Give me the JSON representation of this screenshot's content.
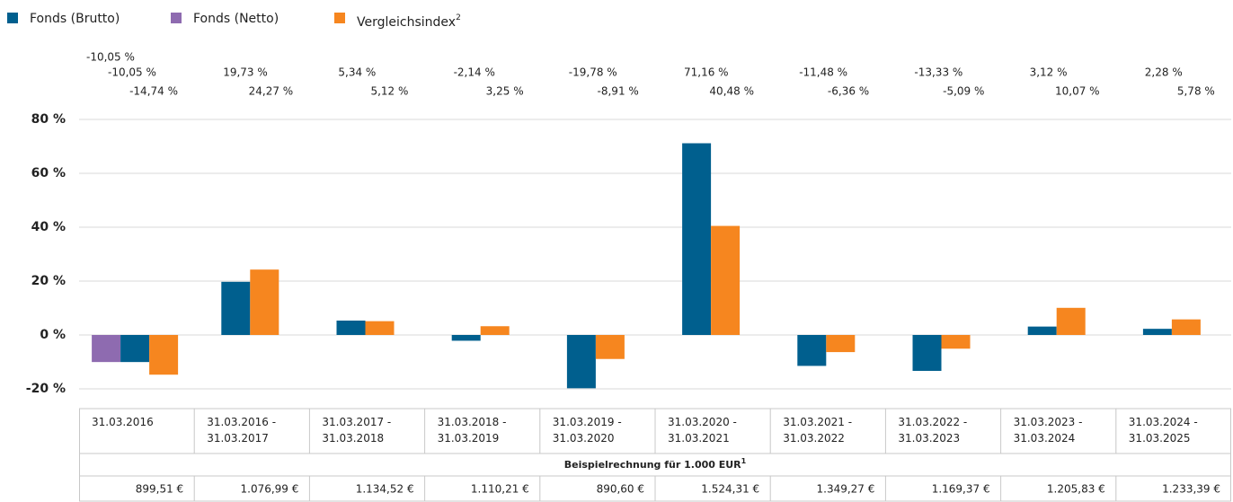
{
  "chart_data": {
    "type": "bar",
    "categories": [
      "31.03.2016",
      "31.03.2016 -\n31.03.2017",
      "31.03.2017 -\n31.03.2018",
      "31.03.2018 -\n31.03.2019",
      "31.03.2019 -\n31.03.2020",
      "31.03.2020 -\n31.03.2021",
      "31.03.2021 -\n31.03.2022",
      "31.03.2022 -\n31.03.2023",
      "31.03.2023 -\n31.03.2024",
      "31.03.2024 -\n31.03.2025"
    ],
    "series": [
      {
        "name": "Fonds (Netto)",
        "color": "#8e6bb0",
        "values": [
          -10.05,
          null,
          null,
          null,
          null,
          null,
          null,
          null,
          null,
          null
        ],
        "value_labels": [
          "-10,05 %",
          null,
          null,
          null,
          null,
          null,
          null,
          null,
          null,
          null
        ]
      },
      {
        "name": "Fonds (Brutto)",
        "color": "#005f8e",
        "values": [
          -10.05,
          19.73,
          5.34,
          -2.14,
          -19.78,
          71.16,
          -11.48,
          -13.33,
          3.12,
          2.28
        ],
        "value_labels": [
          "-10,05 %",
          "19,73 %",
          "5,34 %",
          "-2,14 %",
          "-19,78 %",
          "71,16 %",
          "-11,48 %",
          "-13,33 %",
          "3,12 %",
          "2,28 %"
        ]
      },
      {
        "name": "Vergleichsindex",
        "name_sup": "2",
        "color": "#f6861f",
        "values": [
          -14.74,
          24.27,
          5.12,
          3.25,
          -8.91,
          40.48,
          -6.36,
          -5.09,
          10.07,
          5.78
        ],
        "value_labels": [
          "-14,74 %",
          "24,27 %",
          "5,12 %",
          "3,25 %",
          "-8,91 %",
          "40,48 %",
          "-6,36 %",
          "-5,09 %",
          "10,07 %",
          "5,78 %"
        ]
      }
    ],
    "legend_order": [
      1,
      0,
      2
    ],
    "ylim": [
      -20,
      80
    ],
    "yticks": [
      {
        "value": -20,
        "label": "-20 %"
      },
      {
        "value": 0,
        "label": "0 %"
      },
      {
        "value": 20,
        "label": "20 %"
      },
      {
        "value": 40,
        "label": "40 %"
      },
      {
        "value": 60,
        "label": "60 %"
      },
      {
        "value": 80,
        "label": "80 %"
      }
    ],
    "grid": true
  },
  "table": {
    "caption": "Beispielrechnung für 1.000 EUR",
    "caption_sup": "1",
    "values": [
      "899,51 €",
      "1.076,99 €",
      "1.134,52 €",
      "1.110,21 €",
      "890,60 €",
      "1.524,31 €",
      "1.349,27 €",
      "1.169,37 €",
      "1.205,83 €",
      "1.233,39 €"
    ]
  }
}
